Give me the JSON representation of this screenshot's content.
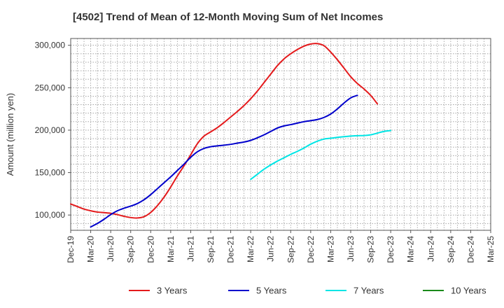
{
  "chart_data": {
    "type": "line",
    "title": "[4502]  Trend of Mean of 12-Month Moving Sum of Net Incomes",
    "xlabel": "",
    "ylabel": "Amount (million yen)",
    "x_ticks": [
      "Dec-19",
      "Mar-20",
      "Jun-20",
      "Sep-20",
      "Dec-20",
      "Mar-21",
      "Jun-21",
      "Sep-21",
      "Dec-21",
      "Mar-22",
      "Jun-22",
      "Sep-22",
      "Dec-22",
      "Mar-23",
      "Jun-23",
      "Sep-23",
      "Dec-23",
      "Mar-24",
      "Jun-24",
      "Sep-24",
      "Dec-24",
      "Mar-25"
    ],
    "y_ticks": [
      100000,
      150000,
      200000,
      250000,
      300000
    ],
    "y_tick_labels": [
      "100,000",
      "150,000",
      "200,000",
      "250,000",
      "300,000"
    ],
    "ylim": [
      82000,
      308000
    ],
    "grid": true,
    "legend_position": "bottom",
    "series": [
      {
        "name": "3 Years",
        "color": "#e41a1c",
        "start": "Dec-19",
        "values": [
          113000,
          110000,
          107000,
          105000,
          103500,
          102800,
          102000,
          100500,
          98500,
          97000,
          96500,
          98000,
          103000,
          111000,
          121000,
          133000,
          146000,
          158000,
          171000,
          184000,
          193000,
          198000,
          203000,
          209000,
          215500,
          222000,
          229000,
          237000,
          246000,
          256000,
          266000,
          276000,
          284000,
          290000,
          295000,
          299000,
          301500,
          302000,
          299500,
          292000,
          283000,
          273000,
          263000,
          255000,
          248500,
          241000,
          231000
        ]
      },
      {
        "name": "5 Years",
        "color": "#0000cc",
        "start": "Mar-20",
        "values": [
          86000,
          90000,
          95000,
          100500,
          105000,
          108000,
          110500,
          113500,
          118000,
          124000,
          131000,
          138000,
          145000,
          152500,
          160000,
          168000,
          174500,
          178500,
          180500,
          181500,
          182300,
          183300,
          184700,
          186000,
          188000,
          191000,
          194500,
          198500,
          202500,
          205000,
          206500,
          208300,
          210000,
          211200,
          212500,
          215000,
          219000,
          225000,
          232000,
          238000,
          241000
        ]
      },
      {
        "name": "7 Years",
        "color": "#00e5e5",
        "start": "Mar-22",
        "values": [
          142000,
          148000,
          154000,
          159000,
          163500,
          167500,
          171500,
          175000,
          179000,
          183500,
          187000,
          189500,
          190500,
          191500,
          192300,
          193000,
          193500,
          193700,
          194500,
          196500,
          198500,
          199500
        ]
      },
      {
        "name": "10 Years",
        "color": "#1a8a1a",
        "start": "",
        "values": []
      }
    ]
  }
}
